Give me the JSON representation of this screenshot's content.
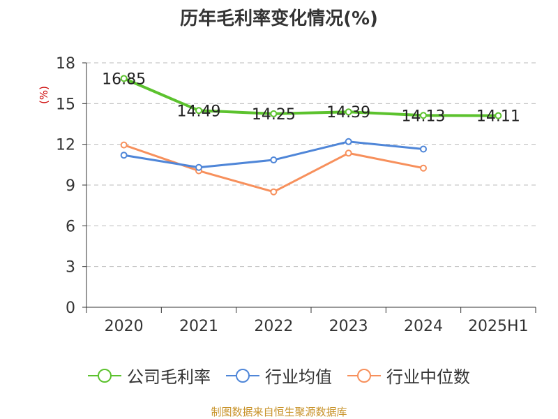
{
  "title": "历年毛利率变化情况(%)",
  "unit_label": "(%)",
  "source": "制图数据来自恒生聚源数据库",
  "colors": {
    "company": "#5cc22e",
    "industry_avg": "#4f86d8",
    "industry_median": "#f7905c",
    "grid": "#bbbbbb",
    "axis": "#333333"
  },
  "chart_data": {
    "type": "line",
    "categories": [
      "2020",
      "2021",
      "2022",
      "2023",
      "2024",
      "2025H1"
    ],
    "ylim": [
      0,
      18
    ],
    "yticks": [
      0,
      3,
      6,
      9,
      12,
      15,
      18
    ],
    "grid": true,
    "legend_position": "bottom",
    "series": [
      {
        "name": "公司毛利率",
        "values": [
          16.85,
          14.49,
          14.25,
          14.39,
          14.13,
          14.11
        ],
        "labels": [
          "16.85",
          "14.49",
          "14.25",
          "14.39",
          "14.13",
          "14.11"
        ]
      },
      {
        "name": "行业均值",
        "values": [
          11.2,
          10.3,
          10.85,
          12.2,
          11.65,
          null
        ]
      },
      {
        "name": "行业中位数",
        "values": [
          11.95,
          10.05,
          8.5,
          11.35,
          10.25,
          null
        ]
      }
    ]
  }
}
